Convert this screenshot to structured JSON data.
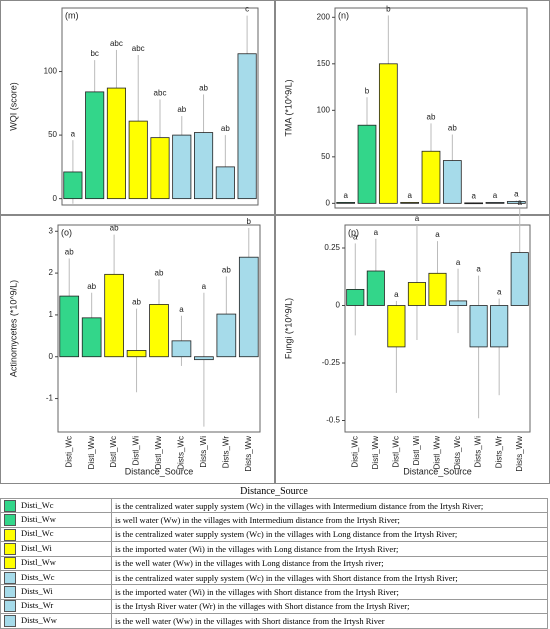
{
  "chart_data": [
    {
      "type": "bar",
      "panel_label": "(m)",
      "ylabel": "WQI (score)",
      "categories": [
        "Disti_Wc",
        "Disti_Ww",
        "Distl_Wc",
        "Distl_Wi",
        "Distl_Ww",
        "Dists_Wc",
        "Dists_Wi",
        "Dists_Wr",
        "Dists_Ww"
      ],
      "colors": [
        "#33d68a",
        "#33d68a",
        "#ffff00",
        "#ffff00",
        "#ffff00",
        "#a6dbea",
        "#a6dbea",
        "#a6dbea",
        "#a6dbea"
      ],
      "values": [
        21,
        84,
        87,
        61,
        48,
        50,
        52,
        25,
        114
      ],
      "errors": [
        25,
        25,
        30,
        52,
        30,
        15,
        30,
        25,
        30
      ],
      "letters": [
        "a",
        "bc",
        "abc",
        "abc",
        "abc",
        "ab",
        "ab",
        "ab",
        "c"
      ],
      "ylim": [
        -5,
        150
      ],
      "yticks": [
        0,
        50,
        100
      ]
    },
    {
      "type": "bar",
      "panel_label": "(n)",
      "ylabel": "TMA (*10^9/L)",
      "categories": [
        "Disti_Wc",
        "Disti_Ww",
        "Distl_Wc",
        "Distl_Wi",
        "Distl_Ww",
        "Dists_Wc",
        "Dists_Wi",
        "Dists_Wr",
        "Dists_Ww"
      ],
      "colors": [
        "#33d68a",
        "#33d68a",
        "#ffff00",
        "#ffff00",
        "#ffff00",
        "#a6dbea",
        "#a6dbea",
        "#a6dbea",
        "#a6dbea"
      ],
      "values": [
        1,
        84,
        150,
        1,
        56,
        46,
        0.5,
        1,
        2
      ],
      "errors": [
        0.5,
        30,
        52,
        0.5,
        30,
        28,
        0.5,
        0.5,
        1
      ],
      "letters": [
        "a",
        "b",
        "b",
        "a",
        "ab",
        "ab",
        "a",
        "a",
        "a"
      ],
      "ylim": [
        -5,
        210
      ],
      "yticks": [
        0,
        50,
        100,
        150,
        200
      ]
    },
    {
      "type": "bar",
      "panel_label": "(o)",
      "ylabel": "Actinomycetes (*10^9/L)",
      "xlabel": "Distance_Source",
      "categories": [
        "Disti_Wc",
        "Disti_Ww",
        "Distl_Wc",
        "Distl_Wi",
        "Distl_Ww",
        "Dists_Wc",
        "Dists_Wi",
        "Dists_Wr",
        "Dists_Ww"
      ],
      "colors": [
        "#33d68a",
        "#33d68a",
        "#ffff00",
        "#ffff00",
        "#ffff00",
        "#a6dbea",
        "#a6dbea",
        "#a6dbea",
        "#a6dbea"
      ],
      "values": [
        1.45,
        0.93,
        1.97,
        0.15,
        1.25,
        0.38,
        -0.07,
        1.02,
        2.38
      ],
      "errors": [
        0.9,
        0.6,
        0.95,
        1.0,
        0.6,
        0.6,
        1.6,
        0.9,
        0.7
      ],
      "letters": [
        "ab",
        "ab",
        "ab",
        "ab",
        "ab",
        "a",
        "a",
        "ab",
        "b"
      ],
      "ylim": [
        -1.8,
        3.15
      ],
      "yticks": [
        -1,
        0,
        1,
        2,
        3
      ]
    },
    {
      "type": "bar",
      "panel_label": "(p)",
      "ylabel": "Fungi (*10^9/L)",
      "xlabel": "Distance_Source",
      "categories": [
        "Disti_Wc",
        "Disti_Ww",
        "Distl_Wc",
        "Distl_Wi",
        "Distl_Ww",
        "Dists_Wc",
        "Dists_Wi",
        "Dists_Wr",
        "Dists_Ww"
      ],
      "colors": [
        "#33d68a",
        "#33d68a",
        "#ffff00",
        "#ffff00",
        "#ffff00",
        "#a6dbea",
        "#a6dbea",
        "#a6dbea",
        "#a6dbea"
      ],
      "values": [
        0.07,
        0.15,
        -0.18,
        0.1,
        0.14,
        0.02,
        -0.18,
        -0.18,
        0.23
      ],
      "errors": [
        0.2,
        0.14,
        0.2,
        0.25,
        0.14,
        0.14,
        0.31,
        0.21,
        0.19
      ],
      "letters": [
        "a",
        "a",
        "a",
        "a",
        "a",
        "a",
        "a",
        "a",
        "a"
      ],
      "ylim": [
        -0.55,
        0.35
      ],
      "yticks": [
        -0.5,
        -0.25,
        0,
        0.25
      ]
    }
  ],
  "legend_table": {
    "title": "Distance_Source",
    "rows": [
      {
        "name": "Disti_Wc",
        "color": "#33d68a",
        "description": "is the centralized water supply system (Wc) in the villages with Intermedium distance from the Irtysh River;"
      },
      {
        "name": "Disti_Ww",
        "color": "#33d68a",
        "description": "is well water (Ww) in the villages with Intermedium distance from the Irtysh River;"
      },
      {
        "name": "Distl_Wc",
        "color": "#ffff00",
        "description": "is the centralized water supply system (Wc) in the villages with Long distance from the Irtysh River;"
      },
      {
        "name": "Distl_Wi",
        "color": "#ffff00",
        "description": "is the imported water (Wi) in the villages with Long distance from the Irtysh River;"
      },
      {
        "name": "Distl_Ww",
        "color": "#ffff00",
        "description": "is the well water (Ww) in the villages with Long distance from the Irtysh river;"
      },
      {
        "name": "Dists_Wc",
        "color": "#a6dbea",
        "description": "is the centralized water supply system (Wc) in the villages with Short distance from the Irtysh River;"
      },
      {
        "name": "Dists_Wi",
        "color": "#a6dbea",
        "description": "is the imported water (Wi) in the villages with Short distance from the Irtysh River;"
      },
      {
        "name": "Dists_Wr",
        "color": "#a6dbea",
        "description": "is the Irtysh River water (Wr) in the villages with Short distance from the Irtysh River;"
      },
      {
        "name": "Dists_Ww",
        "color": "#a6dbea",
        "description": "is the well water (Ww) in the villages with Short distance from the Irtysh River"
      }
    ]
  }
}
